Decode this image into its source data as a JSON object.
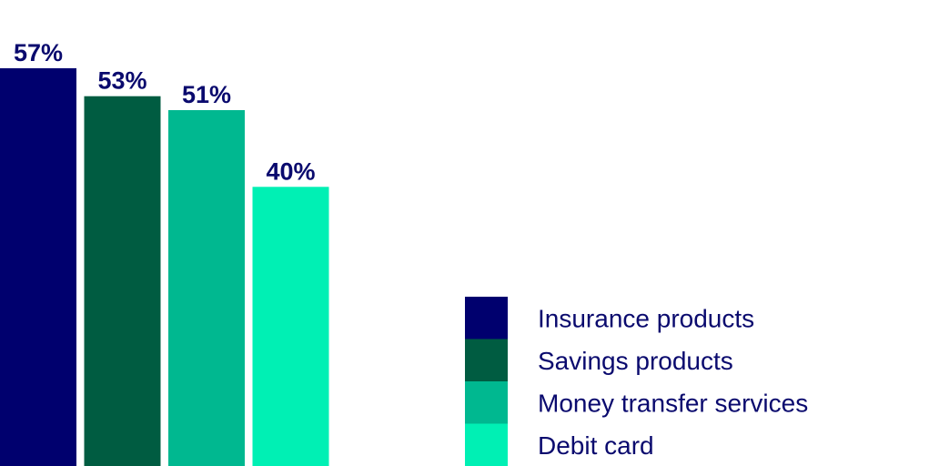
{
  "chart_data": {
    "type": "bar",
    "categories": [
      "Insurance products",
      "Savings products",
      "Money transfer services",
      "Debit card"
    ],
    "values": [
      57,
      53,
      51,
      40
    ],
    "value_labels": [
      "57%",
      "53%",
      "51%",
      "40%"
    ],
    "unit": "%",
    "colors": [
      "#00006e",
      "#005c41",
      "#00b890",
      "#00f0b4"
    ],
    "label_color": "#0a0a6e",
    "legend_text_color": "#0a0a6e",
    "grid": false,
    "legend_placement": "bottom-right",
    "legend": [
      {
        "label": "Insurance products",
        "color": "#00006e"
      },
      {
        "label": "Savings products",
        "color": "#005c41"
      },
      {
        "label": "Money transfer services",
        "color": "#00b890"
      },
      {
        "label": "Debit card",
        "color": "#00f0b4"
      }
    ]
  }
}
